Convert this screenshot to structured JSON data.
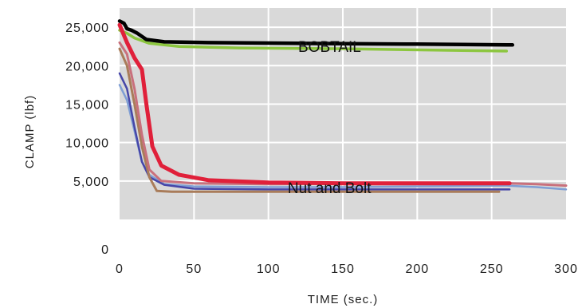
{
  "chart_data": {
    "type": "line",
    "title": "",
    "xlabel": "TIME (sec.)",
    "ylabel": "CLAMP (lbf)",
    "xlim": [
      0,
      300
    ],
    "ylim": [
      0,
      27500
    ],
    "x_ticks": [
      0,
      50,
      100,
      150,
      200,
      250,
      300
    ],
    "x_tick_labels": [
      "0",
      "50",
      "100",
      "150",
      "200",
      "250",
      "300"
    ],
    "y_ticks": [
      0,
      5000,
      10000,
      15000,
      20000,
      25000
    ],
    "y_tick_labels": [
      "0",
      "5,000",
      "10,000",
      "15,000",
      "20,000",
      "25,000"
    ],
    "grid": true,
    "background": "#d9d9d9",
    "annotations": [
      {
        "text": "BOBTAIL",
        "x": 120,
        "y": 21800
      },
      {
        "text": "Nut and Bolt",
        "x": 113,
        "y": 3400
      }
    ],
    "series": [
      {
        "color": "#8cc63f",
        "width": 3.5,
        "points": [
          [
            0,
            24600
          ],
          [
            5,
            24200
          ],
          [
            10,
            23600
          ],
          [
            20,
            22900
          ],
          [
            40,
            22500
          ],
          [
            80,
            22300
          ],
          [
            150,
            22200
          ],
          [
            220,
            22000
          ],
          [
            260,
            21900
          ]
        ]
      },
      {
        "color": "#000000",
        "width": 4.5,
        "points": [
          [
            0,
            25800
          ],
          [
            3,
            25500
          ],
          [
            5,
            24800
          ],
          [
            8,
            24600
          ],
          [
            12,
            24200
          ],
          [
            18,
            23400
          ],
          [
            30,
            23100
          ],
          [
            60,
            23000
          ],
          [
            120,
            22900
          ],
          [
            200,
            22800
          ],
          [
            264,
            22700
          ]
        ]
      },
      {
        "color": "#7f9ed4",
        "width": 2.5,
        "points": [
          [
            0,
            17500
          ],
          [
            5,
            15500
          ],
          [
            10,
            11500
          ],
          [
            15,
            7500
          ],
          [
            20,
            5800
          ],
          [
            30,
            4600
          ],
          [
            50,
            4300
          ],
          [
            100,
            4200
          ],
          [
            150,
            4200
          ],
          [
            200,
            4300
          ],
          [
            260,
            4400
          ],
          [
            280,
            4200
          ],
          [
            300,
            3900
          ]
        ]
      },
      {
        "color": "#4646a8",
        "width": 2.5,
        "points": [
          [
            0,
            19000
          ],
          [
            5,
            17000
          ],
          [
            10,
            12000
          ],
          [
            15,
            7500
          ],
          [
            20,
            5500
          ],
          [
            30,
            4500
          ],
          [
            50,
            4000
          ],
          [
            100,
            3900
          ],
          [
            200,
            3900
          ],
          [
            262,
            3900
          ]
        ]
      },
      {
        "color": "#a97c5a",
        "width": 3,
        "points": [
          [
            0,
            22200
          ],
          [
            5,
            20000
          ],
          [
            10,
            15000
          ],
          [
            15,
            9500
          ],
          [
            20,
            5500
          ],
          [
            25,
            3700
          ],
          [
            35,
            3600
          ],
          [
            100,
            3600
          ],
          [
            200,
            3600
          ],
          [
            255,
            3600
          ]
        ]
      },
      {
        "color": "#c9707c",
        "width": 3,
        "points": [
          [
            0,
            23000
          ],
          [
            5,
            21500
          ],
          [
            10,
            17000
          ],
          [
            15,
            11000
          ],
          [
            20,
            6500
          ],
          [
            28,
            5000
          ],
          [
            50,
            4700
          ],
          [
            100,
            4600
          ],
          [
            200,
            4700
          ],
          [
            262,
            4700
          ],
          [
            280,
            4600
          ],
          [
            300,
            4400
          ]
        ]
      },
      {
        "color": "#e0203a",
        "width": 5,
        "points": [
          [
            0,
            25300
          ],
          [
            5,
            23000
          ],
          [
            10,
            21000
          ],
          [
            15,
            19500
          ],
          [
            18,
            15000
          ],
          [
            22,
            9500
          ],
          [
            28,
            7000
          ],
          [
            40,
            5800
          ],
          [
            60,
            5100
          ],
          [
            100,
            4800
          ],
          [
            150,
            4700
          ],
          [
            200,
            4700
          ],
          [
            262,
            4700
          ]
        ]
      }
    ]
  }
}
